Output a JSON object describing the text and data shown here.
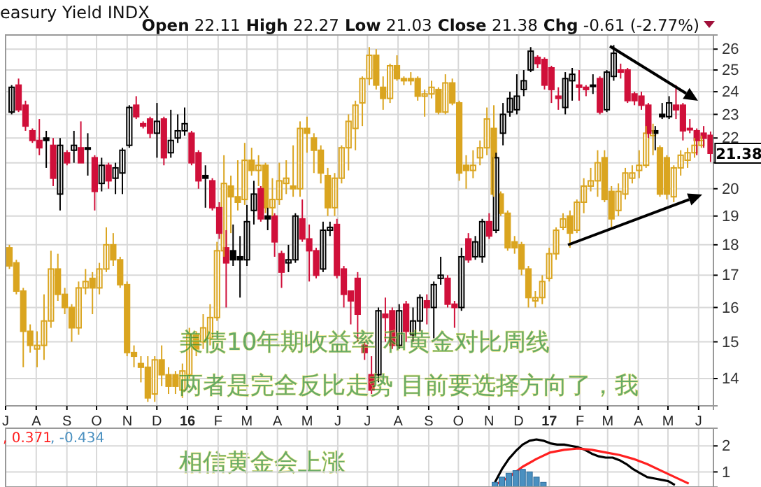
{
  "chart_data": [
    {
      "type": "candlestick",
      "title": "easury Yield INDX",
      "subtitle": "Open 22.11 High 22.27 Low 21.03 Close 21.38 Chg -0.61 (-2.77%)",
      "x": [
        "2015-07-06",
        "2015-07-13",
        "2015-07-20",
        "2015-07-27",
        "2015-08-03",
        "2015-08-10",
        "2015-08-17",
        "2015-08-24",
        "2015-08-31",
        "2015-09-07",
        "2015-09-14",
        "2015-09-21",
        "2015-09-28",
        "2015-10-05",
        "2015-10-12",
        "2015-10-19",
        "2015-10-26",
        "2015-11-02",
        "2015-11-09",
        "2015-11-16",
        "2015-11-23",
        "2015-11-30",
        "2015-12-07",
        "2015-12-14",
        "2015-12-21",
        "2015-12-28",
        "2016-01-04",
        "2016-01-11",
        "2016-01-18",
        "2016-01-25",
        "2016-02-01",
        "2016-02-08",
        "2016-02-15",
        "2016-02-22",
        "2016-02-29",
        "2016-03-07",
        "2016-03-14",
        "2016-03-21",
        "2016-03-28",
        "2016-04-04",
        "2016-04-11",
        "2016-04-18",
        "2016-04-25",
        "2016-05-02",
        "2016-05-09",
        "2016-05-16",
        "2016-05-23",
        "2016-05-30",
        "2016-06-06",
        "2016-06-13",
        "2016-06-20",
        "2016-06-27",
        "2016-07-04",
        "2016-07-11",
        "2016-07-18",
        "2016-07-25",
        "2016-08-01",
        "2016-08-08",
        "2016-08-15",
        "2016-08-22",
        "2016-08-29",
        "2016-09-05",
        "2016-09-12",
        "2016-09-19",
        "2016-09-26",
        "2016-10-03",
        "2016-10-10",
        "2016-10-17",
        "2016-10-24",
        "2016-10-31",
        "2016-11-07",
        "2016-11-14",
        "2016-11-21",
        "2016-11-28",
        "2016-12-05",
        "2016-12-12",
        "2016-12-19",
        "2016-12-26",
        "2017-01-02",
        "2017-01-09",
        "2017-01-16",
        "2017-01-23",
        "2017-01-30",
        "2017-02-06",
        "2017-02-13",
        "2017-02-20",
        "2017-02-27",
        "2017-03-06",
        "2017-03-13",
        "2017-03-20",
        "2017-03-27",
        "2017-04-03",
        "2017-04-10",
        "2017-04-17",
        "2017-04-24",
        "2017-05-01",
        "2017-05-08",
        "2017-05-15",
        "2017-05-22",
        "2017-05-29",
        "2017-06-05",
        "2017-06-12"
      ],
      "xlim": [
        "2015-07-01",
        "2017-06-16"
      ],
      "xticks": [
        {
          "value": "2015-07-01",
          "label": "J"
        },
        {
          "value": "2015-08-01",
          "label": "A"
        },
        {
          "value": "2015-09-01",
          "label": "S"
        },
        {
          "value": "2015-10-01",
          "label": "O"
        },
        {
          "value": "2015-11-01",
          "label": "N"
        },
        {
          "value": "2015-12-01",
          "label": "D"
        },
        {
          "value": "2016-01-01",
          "label": "16"
        },
        {
          "value": "2016-02-01",
          "label": "F"
        },
        {
          "value": "2016-03-01",
          "label": "M"
        },
        {
          "value": "2016-04-01",
          "label": "A"
        },
        {
          "value": "2016-05-01",
          "label": "M"
        },
        {
          "value": "2016-06-01",
          "label": "J"
        },
        {
          "value": "2016-07-01",
          "label": "J"
        },
        {
          "value": "2016-08-01",
          "label": "A"
        },
        {
          "value": "2016-09-01",
          "label": "S"
        },
        {
          "value": "2016-10-01",
          "label": "O"
        },
        {
          "value": "2016-11-01",
          "label": "N"
        },
        {
          "value": "2016-12-01",
          "label": "D"
        },
        {
          "value": "2017-01-01",
          "label": "17"
        },
        {
          "value": "2017-02-01",
          "label": "F"
        },
        {
          "value": "2017-03-01",
          "label": "M"
        },
        {
          "value": "2017-04-01",
          "label": "A"
        },
        {
          "value": "2017-05-01",
          "label": "M"
        },
        {
          "value": "2017-06-01",
          "label": "J"
        }
      ],
      "ylim": [
        13.3,
        26.7
      ],
      "yticks": [
        14,
        15,
        16,
        17,
        18,
        19,
        20,
        {
          "value": 21,
          "label": null
        },
        22,
        23,
        24,
        25,
        26
      ],
      "log": true,
      "grid": true,
      "annotations": [
        "美债10年期收益率 和黄金对比周线",
        "两者是完全反比走势 目前要选择方向了，我",
        "相信黄金会上涨",
        {
          "text": "21.38",
          "x": "2017-06-12",
          "y": 21.38
        }
      ],
      "series": [
        {
          "color": "#daa520",
          "ohlc": [
            [
              17.9,
              18.0,
              17.2,
              17.3
            ],
            [
              17.4,
              17.5,
              16.4,
              16.5
            ],
            [
              16.5,
              16.6,
              14.3,
              15.3
            ],
            [
              15.3,
              15.5,
              14.7,
              14.9
            ],
            [
              14.8,
              15.3,
              14.3,
              14.9
            ],
            [
              14.9,
              16.4,
              14.5,
              15.6
            ],
            [
              15.6,
              17.8,
              15.4,
              17.2
            ],
            [
              17.2,
              17.7,
              16.2,
              16.4
            ],
            [
              16.4,
              16.6,
              15.8,
              16.0
            ],
            [
              16.0,
              16.1,
              15.0,
              15.4
            ],
            [
              15.4,
              16.8,
              15.2,
              16.6
            ],
            [
              16.6,
              17.2,
              16.4,
              16.8
            ],
            [
              16.9,
              17.1,
              15.8,
              16.6
            ],
            [
              16.6,
              17.4,
              16.4,
              17.2
            ],
            [
              17.2,
              18.6,
              17.1,
              18.0
            ],
            [
              18.0,
              18.4,
              17.3,
              17.5
            ],
            [
              17.5,
              17.6,
              16.6,
              16.7
            ],
            [
              16.7,
              16.8,
              14.6,
              14.7
            ],
            [
              14.7,
              14.9,
              14.3,
              14.6
            ],
            [
              14.4,
              14.6,
              13.9,
              14.3
            ],
            [
              14.3,
              14.6,
              13.4,
              13.5
            ],
            [
              13.6,
              14.6,
              13.4,
              14.5
            ],
            [
              14.5,
              14.9,
              13.8,
              14.1
            ],
            [
              14.1,
              14.3,
              13.6,
              13.8
            ],
            [
              14.1,
              14.2,
              13.6,
              13.8
            ],
            [
              13.7,
              14.4,
              13.5,
              14.2
            ],
            [
              14.1,
              15.4,
              14.0,
              15.2
            ],
            [
              15.2,
              15.3,
              14.6,
              14.8
            ],
            [
              15.0,
              15.8,
              14.8,
              15.4
            ],
            [
              15.1,
              16.1,
              14.9,
              15.7
            ],
            [
              15.7,
              18.1,
              15.6,
              17.8
            ],
            [
              17.8,
              21.3,
              17.6,
              20.2
            ],
            [
              20.1,
              20.5,
              18.4,
              19.7
            ],
            [
              19.7,
              21.1,
              19.2,
              19.5
            ],
            [
              19.6,
              21.8,
              19.4,
              21.1
            ],
            [
              21.1,
              21.6,
              20.5,
              20.7
            ],
            [
              20.7,
              21.3,
              20.1,
              20.9
            ],
            [
              20.9,
              21.0,
              19.1,
              19.3
            ],
            [
              19.3,
              20.4,
              19.0,
              19.6
            ],
            [
              19.6,
              21.0,
              19.4,
              20.3
            ],
            [
              20.2,
              21.1,
              19.8,
              20.4
            ],
            [
              20.1,
              21.7,
              19.7,
              20.0
            ],
            [
              20.0,
              22.7,
              19.7,
              22.4
            ],
            [
              22.4,
              22.9,
              21.4,
              22.2
            ],
            [
              22.0,
              22.2,
              20.6,
              21.5
            ],
            [
              21.5,
              21.7,
              20.2,
              20.6
            ],
            [
              20.5,
              20.8,
              19.0,
              19.3
            ],
            [
              19.3,
              20.6,
              19.0,
              20.4
            ],
            [
              20.4,
              21.7,
              20.2,
              21.6
            ],
            [
              21.6,
              23.0,
              20.7,
              22.7
            ],
            [
              22.4,
              23.6,
              21.5,
              23.4
            ],
            [
              23.5,
              24.7,
              22.5,
              24.6
            ],
            [
              24.6,
              26.1,
              24.3,
              25.7
            ],
            [
              25.7,
              26.0,
              24.1,
              24.3
            ],
            [
              24.2,
              24.7,
              23.2,
              23.7
            ],
            [
              23.7,
              25.3,
              23.5,
              25.2
            ],
            [
              25.2,
              25.7,
              24.5,
              24.6
            ],
            [
              24.6,
              24.7,
              24.3,
              24.5
            ],
            [
              24.6,
              24.9,
              24.3,
              24.5
            ],
            [
              24.6,
              24.7,
              23.6,
              23.8
            ],
            [
              23.8,
              24.1,
              22.9,
              23.9
            ],
            [
              23.9,
              24.5,
              23.7,
              24.2
            ],
            [
              24.1,
              24.2,
              23.0,
              23.1
            ],
            [
              23.1,
              24.8,
              23.0,
              24.4
            ],
            [
              24.4,
              24.6,
              23.4,
              23.5
            ],
            [
              23.5,
              23.6,
              20.3,
              20.6
            ],
            [
              20.9,
              21.3,
              20.0,
              20.7
            ],
            [
              20.7,
              21.5,
              20.4,
              20.9
            ],
            [
              21.2,
              21.9,
              20.9,
              21.6
            ],
            [
              21.6,
              23.3,
              21.3,
              22.8
            ],
            [
              22.4,
              23.4,
              19.7,
              19.8
            ],
            [
              19.8,
              19.9,
              19.0,
              19.1
            ],
            [
              19.1,
              19.2,
              17.8,
              17.9
            ],
            [
              18.1,
              18.3,
              17.7,
              17.9
            ],
            [
              18.0,
              18.1,
              17.0,
              17.2
            ],
            [
              17.2,
              17.3,
              16.0,
              16.3
            ],
            [
              16.2,
              16.5,
              16.0,
              16.3
            ],
            [
              16.3,
              17.0,
              16.1,
              16.8
            ],
            [
              16.9,
              17.9,
              16.8,
              17.7
            ],
            [
              17.7,
              18.6,
              17.5,
              18.5
            ],
            [
              18.6,
              19.1,
              18.5,
              18.9
            ],
            [
              19.0,
              19.2,
              17.9,
              18.4
            ],
            [
              18.5,
              19.6,
              18.4,
              19.5
            ],
            [
              19.5,
              20.4,
              19.1,
              20.1
            ],
            [
              20.1,
              20.8,
              19.9,
              20.3
            ],
            [
              20.3,
              21.5,
              19.7,
              21.0
            ],
            [
              21.2,
              21.5,
              19.5,
              19.6
            ],
            [
              19.9,
              20.1,
              18.6,
              18.9
            ],
            [
              19.2,
              20.2,
              19.0,
              19.9
            ],
            [
              19.8,
              20.8,
              19.6,
              20.6
            ],
            [
              20.4,
              20.9,
              20.2,
              20.6
            ],
            [
              20.7,
              21.5,
              20.4,
              20.9
            ],
            [
              20.9,
              22.5,
              20.8,
              22.2
            ],
            [
              22.1,
              22.6,
              21.3,
              22.3
            ],
            [
              21.6,
              21.7,
              19.7,
              19.8
            ],
            [
              21.2,
              21.3,
              19.6,
              19.8
            ],
            [
              19.7,
              20.9,
              19.5,
              20.8
            ],
            [
              20.8,
              21.5,
              20.5,
              21.3
            ],
            [
              21.1,
              21.6,
              20.8,
              21.4
            ],
            [
              21.4,
              22.0,
              21.2,
              21.7
            ],
            [
              21.7,
              22.1,
              21.6,
              21.9
            ],
            null
          ]
        },
        {
          "colors": [
            "#000000",
            "#d0103a",
            "#d0103a",
            "#d0103a",
            "#d0103a",
            "#000000",
            "#d0103a",
            "#000000",
            "#d0103a",
            "#000000",
            "#d0103a",
            "#000000",
            "#d0103a",
            "#000000",
            "#d0103a",
            "#000000",
            "#000000",
            "#000000",
            "#d0103a",
            "#d0103a",
            "#d0103a",
            "#000000",
            "#d0103a",
            "#000000",
            "#000000",
            "#000000",
            "#d0103a",
            "#d0103a",
            "#000000",
            "#d0103a",
            "#d0103a",
            "#d0103a",
            "#000000",
            "#000000",
            "#000000",
            "#000000",
            "#d0103a",
            "#000000",
            "#d0103a",
            "#d0103a",
            "#000000",
            "#000000",
            "#d0103a",
            "#d0103a",
            "#d0103a",
            "#000000",
            "#000000",
            "#d0103a",
            "#d0103a",
            "#d0103a",
            "#d0103a",
            "#d0103a",
            "#d0103a",
            "#000000",
            "#d0103a",
            "#d0103a",
            "#000000",
            "#d0103a",
            "#000000",
            "#000000",
            "#d0103a",
            "#000000",
            "#000000",
            "#d0103a",
            "#d0103a",
            "#000000",
            "#d0103a",
            "#000000",
            "#000000",
            "#d0103a",
            "#000000",
            "#000000",
            "#000000",
            "#000000",
            "#000000",
            "#000000",
            "#d0103a",
            "#d0103a",
            "#d0103a",
            "#d0103a",
            "#000000",
            "#000000",
            "#d0103a",
            "#d0103a",
            "#000000",
            "#d0103a",
            "#000000",
            "#000000",
            "#d0103a",
            "#d0103a",
            "#d0103a",
            "#d0103a",
            "#d0103a",
            "#000000",
            "#000000",
            "#000000",
            "#d0103a",
            "#d0103a",
            "#d0103a",
            "#d0103a",
            "#d0103a",
            "#d0103a"
          ],
          "ohlc": [
            [
              23.1,
              24.3,
              23.0,
              24.2
            ],
            [
              24.3,
              24.6,
              23.1,
              23.2
            ],
            [
              23.4,
              23.6,
              22.3,
              22.5
            ],
            [
              22.3,
              22.4,
              21.8,
              21.9
            ],
            [
              21.9,
              22.8,
              21.3,
              21.6
            ],
            [
              22.0,
              22.3,
              20.8,
              21.9
            ],
            [
              21.7,
              22.0,
              20.1,
              20.4
            ],
            [
              19.8,
              22.0,
              19.2,
              21.7
            ],
            [
              21.4,
              21.5,
              20.9,
              21.0
            ],
            [
              21.5,
              22.3,
              21.0,
              21.7
            ],
            [
              21.6,
              22.7,
              21.0,
              21.0
            ],
            [
              21.6,
              22.2,
              20.5,
              21.55
            ],
            [
              21.2,
              21.3,
              19.2,
              19.9
            ],
            [
              20.2,
              21.2,
              19.9,
              20.9
            ],
            [
              20.9,
              21.0,
              20.0,
              20.3
            ],
            [
              20.4,
              21.0,
              19.8,
              20.8
            ],
            [
              20.6,
              21.6,
              19.8,
              21.5
            ],
            [
              21.7,
              23.4,
              21.6,
              23.3
            ],
            [
              23.4,
              23.8,
              22.8,
              22.9
            ],
            [
              22.6,
              22.7,
              22.4,
              22.5
            ],
            [
              22.8,
              22.9,
              22.0,
              22.2
            ],
            [
              22.2,
              23.5,
              21.2,
              22.7
            ],
            [
              22.8,
              22.9,
              20.9,
              21.2
            ],
            [
              21.4,
              23.2,
              21.2,
              21.9
            ],
            [
              22.0,
              23.0,
              21.8,
              22.3
            ],
            [
              22.3,
              23.3,
              22.1,
              22.6
            ],
            [
              22.2,
              22.3,
              20.9,
              21.0
            ],
            [
              21.4,
              21.5,
              20.0,
              20.3
            ],
            [
              20.5,
              20.9,
              19.3,
              20.4
            ],
            [
              20.3,
              20.4,
              19.2,
              19.3
            ],
            [
              19.3,
              19.5,
              18.2,
              18.4
            ],
            [
              17.9,
              18.5,
              16.0,
              17.4
            ],
            [
              17.8,
              18.7,
              17.3,
              17.5
            ],
            [
              17.6,
              18.3,
              16.3,
              17.5
            ],
            [
              17.5,
              19.4,
              17.3,
              18.8
            ],
            [
              19.2,
              20.3,
              18.7,
              19.8
            ],
            [
              20.0,
              20.1,
              18.8,
              18.9
            ],
            [
              19.0,
              19.3,
              18.5,
              18.9
            ],
            [
              19.0,
              19.1,
              17.6,
              18.1
            ],
            [
              17.7,
              17.8,
              16.6,
              17.1
            ],
            [
              17.4,
              18.0,
              17.1,
              17.5
            ],
            [
              17.5,
              19.1,
              17.4,
              19.0
            ],
            [
              18.9,
              19.6,
              18.1,
              18.2
            ],
            [
              18.2,
              18.7,
              16.8,
              17.8
            ],
            [
              17.8,
              17.9,
              16.9,
              17.0
            ],
            [
              17.2,
              18.8,
              17.1,
              18.5
            ],
            [
              18.5,
              18.8,
              18.3,
              18.6
            ],
            [
              18.7,
              18.9,
              16.9,
              17.0
            ],
            [
              17.2,
              17.3,
              16.0,
              16.4
            ],
            [
              16.5,
              16.5,
              15.5,
              16.2
            ],
            [
              16.9,
              17.1,
              15.0,
              15.8
            ],
            [
              14.9,
              15.0,
              14.5,
              14.7
            ],
            [
              14.1,
              14.6,
              13.6,
              13.7
            ],
            [
              14.1,
              16.0,
              13.9,
              15.9
            ],
            [
              15.8,
              16.3,
              15.0,
              15.7
            ],
            [
              15.9,
              16.0,
              14.8,
              14.9
            ],
            [
              14.9,
              16.1,
              14.8,
              15.9
            ],
            [
              16.1,
              16.2,
              15.0,
              15.3
            ],
            [
              15.2,
              16.0,
              15.0,
              15.6
            ],
            [
              15.6,
              16.4,
              15.3,
              16.3
            ],
            [
              16.2,
              16.4,
              15.5,
              16.0
            ],
            [
              16.0,
              16.8,
              15.1,
              16.7
            ],
            [
              16.9,
              17.6,
              16.7,
              17.0
            ],
            [
              16.9,
              17.0,
              16.0,
              16.1
            ],
            [
              16.1,
              16.2,
              15.4,
              16.0
            ],
            [
              16.0,
              17.9,
              15.9,
              17.6
            ],
            [
              18.2,
              18.4,
              17.4,
              17.5
            ],
            [
              17.6,
              18.3,
              17.5,
              18.1
            ],
            [
              17.6,
              18.9,
              17.4,
              18.8
            ],
            [
              18.8,
              19.1,
              18.2,
              18.3
            ],
            [
              18.5,
              21.4,
              18.4,
              21.2
            ],
            [
              22.2,
              23.5,
              21.7,
              23.0
            ],
            [
              23.1,
              24.0,
              22.9,
              23.7
            ],
            [
              23.2,
              24.8,
              23.0,
              23.8
            ],
            [
              24.1,
              25.0,
              23.8,
              24.5
            ],
            [
              25.0,
              26.1,
              24.9,
              25.9
            ],
            [
              25.6,
              25.7,
              25.1,
              25.3
            ],
            [
              25.5,
              25.6,
              24.1,
              24.3
            ],
            [
              25.1,
              25.2,
              23.5,
              24.1
            ],
            [
              23.8,
              24.2,
              23.2,
              23.7
            ],
            [
              23.3,
              24.9,
              23.0,
              24.6
            ],
            [
              24.5,
              25.1,
              23.6,
              24.8
            ],
            [
              24.3,
              25.0,
              23.6,
              24.2
            ],
            [
              24.2,
              24.3,
              23.8,
              24.1
            ],
            [
              24.3,
              24.8,
              23.9,
              24.25
            ],
            [
              24.6,
              24.7,
              23.0,
              23.1
            ],
            [
              23.2,
              25.0,
              23.1,
              24.9
            ],
            [
              24.7,
              26.2,
              24.5,
              25.8
            ],
            [
              25.0,
              25.3,
              24.6,
              24.9
            ],
            [
              25.0,
              25.1,
              23.5,
              23.6
            ],
            [
              23.9,
              24.0,
              23.4,
              23.6
            ],
            [
              23.8,
              24.0,
              23.2,
              23.4
            ],
            [
              23.4,
              23.5,
              22.0,
              22.2
            ],
            [
              22.3,
              22.5,
              21.5,
              22.2
            ],
            [
              23.0,
              23.5,
              22.8,
              22.9
            ],
            [
              22.9,
              23.8,
              22.8,
              23.5
            ],
            [
              23.4,
              24.3,
              22.8,
              23.2
            ],
            [
              23.4,
              23.5,
              21.9,
              22.3
            ],
            [
              22.4,
              22.8,
              22.2,
              22.35
            ],
            [
              22.3,
              22.4,
              21.3,
              21.9
            ],
            [
              22.2,
              22.5,
              21.6,
              21.99
            ],
            [
              22.11,
              22.27,
              21.03,
              21.38
            ]
          ]
        }
      ]
    },
    {
      "type": "line",
      "xlim": [
        "2015-07-01",
        "2017-06-16"
      ],
      "xticks": [
        {
          "value": "2015-07-01",
          "label": null
        },
        {
          "value": "2015-08-01",
          "label": null
        },
        {
          "value": "2015-09-01",
          "label": null
        },
        {
          "value": "2015-10-01",
          "label": null
        },
        {
          "value": "2015-11-01",
          "label": null
        },
        {
          "value": "2015-12-01",
          "label": null
        },
        {
          "value": "2016-01-01",
          "label": null
        },
        {
          "value": "2016-02-01",
          "label": null
        },
        {
          "value": "2016-03-01",
          "label": null
        },
        {
          "value": "2016-04-01",
          "label": null
        },
        {
          "value": "2016-05-01",
          "label": null
        },
        {
          "value": "2016-06-01",
          "label": null
        },
        {
          "value": "2016-07-01",
          "label": null
        },
        {
          "value": "2016-08-01",
          "label": null
        },
        {
          "value": "2016-09-01",
          "label": null
        },
        {
          "value": "2016-10-01",
          "label": null
        },
        {
          "value": "2016-11-01",
          "label": null
        },
        {
          "value": "2016-12-01",
          "label": null
        },
        {
          "value": "2017-01-01",
          "label": null
        },
        {
          "value": "2017-02-01",
          "label": null
        },
        {
          "value": "2017-03-01",
          "label": null
        },
        {
          "value": "2017-04-01",
          "label": null
        },
        {
          "value": "2017-05-01",
          "label": null
        },
        {
          "value": "2017-06-01",
          "label": null
        }
      ],
      "ylim": [
        0.42,
        2.68
      ],
      "yticks": [
        1,
        2
      ],
      "grid": true,
      "tick_labels": "y",
      "annotations": [
        ", 0.371",
        ", -0.434"
      ],
      "series": [
        {
          "color": "#000000",
          "x": [
            "2016-11-07",
            "2016-11-14",
            "2016-11-21",
            "2016-11-28",
            "2016-12-05",
            "2016-12-12",
            "2016-12-19",
            "2016-12-26",
            "2017-01-02",
            "2017-01-09",
            "2017-01-16",
            "2017-01-23",
            "2017-01-30",
            "2017-02-06",
            "2017-02-13",
            "2017-02-20",
            "2017-02-27",
            "2017-03-06",
            "2017-03-13",
            "2017-03-20",
            "2017-03-27",
            "2017-04-03",
            "2017-04-10",
            "2017-04-17",
            "2017-04-24",
            "2017-05-01",
            "2017-05-08"
          ],
          "values": [
            0.6,
            1.1,
            1.5,
            1.8,
            2.05,
            2.2,
            2.25,
            2.2,
            2.1,
            2.05,
            2.05,
            2.0,
            1.95,
            1.85,
            1.7,
            1.6,
            1.55,
            1.55,
            1.45,
            1.3,
            1.1,
            0.95,
            0.8,
            0.75,
            0.7,
            0.65,
            0.5
          ]
        },
        {
          "color": "#ff2020",
          "x": [
            "2016-11-07",
            "2016-11-21",
            "2016-12-05",
            "2016-12-19",
            "2017-01-02",
            "2017-01-16",
            "2017-01-30",
            "2017-02-13",
            "2017-02-27",
            "2017-03-13",
            "2017-03-27",
            "2017-04-10",
            "2017-04-24",
            "2017-05-08",
            "2017-05-22"
          ],
          "values": [
            0.5,
            0.8,
            1.2,
            1.5,
            1.75,
            1.85,
            1.9,
            1.85,
            1.75,
            1.65,
            1.5,
            1.3,
            1.05,
            0.8,
            0.55
          ]
        },
        {
          "type": "bar",
          "color": "#4a90c0",
          "x": [
            "2016-11-07",
            "2016-11-14",
            "2016-11-21",
            "2016-11-28",
            "2016-12-05",
            "2016-12-12",
            "2016-12-19",
            "2016-12-26"
          ],
          "values": [
            0.6,
            0.8,
            0.95,
            1.05,
            1.1,
            1.0,
            0.8,
            0.6
          ]
        }
      ]
    }
  ]
}
